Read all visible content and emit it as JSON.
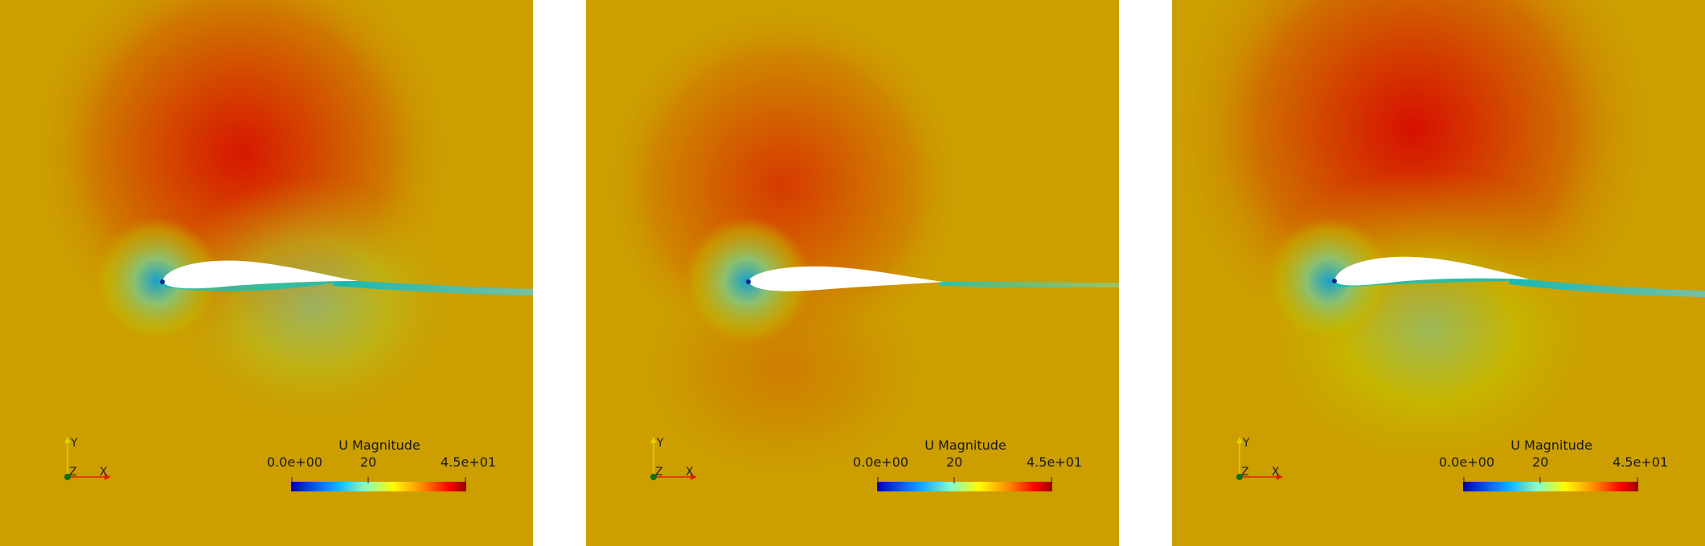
{
  "panels": [
    {
      "colorbar": {
        "title": "U Magnitude",
        "min_label": "0.0e+00",
        "mid_label": "20",
        "max_label": "4.5e+01",
        "range": [
          0,
          45
        ],
        "colormap": [
          "#0000b4",
          "#00aaff",
          "#7fffd0",
          "#ffff00",
          "#ff8800",
          "#ff0000",
          "#9a0000"
        ]
      },
      "axes": {
        "y": "Y",
        "z": "Z",
        "x": "X"
      },
      "field_level": {
        "suction_peak": 0.9,
        "lower_side": 0.55
      }
    },
    {
      "colorbar": {
        "title": "U Magnitude",
        "min_label": "0.0e+00",
        "mid_label": "20",
        "max_label": "4.5e+01",
        "range": [
          0,
          45
        ],
        "colormap": [
          "#0000b4",
          "#00aaff",
          "#7fffd0",
          "#ffff00",
          "#ff8800",
          "#ff0000",
          "#9a0000"
        ]
      },
      "axes": {
        "y": "Y",
        "z": "Z",
        "x": "X"
      },
      "field_level": {
        "suction_peak": 0.8,
        "lower_side": 0.72
      }
    },
    {
      "colorbar": {
        "title": "U Magnitude",
        "min_label": "0.0e+00",
        "mid_label": "20",
        "max_label": "4.5e+01",
        "range": [
          0,
          45
        ],
        "colormap": [
          "#0000b4",
          "#00aaff",
          "#7fffd0",
          "#ffff00",
          "#ff8800",
          "#ff0000",
          "#9a0000"
        ]
      },
      "axes": {
        "y": "Y",
        "z": "Z",
        "x": "X"
      },
      "field_level": {
        "suction_peak": 0.95,
        "lower_side": 0.5
      }
    }
  ],
  "colors": {
    "background_field": "#cc9e00",
    "high": "#d81000",
    "low": "#00b8c8",
    "airfoil": "#ffffff"
  }
}
